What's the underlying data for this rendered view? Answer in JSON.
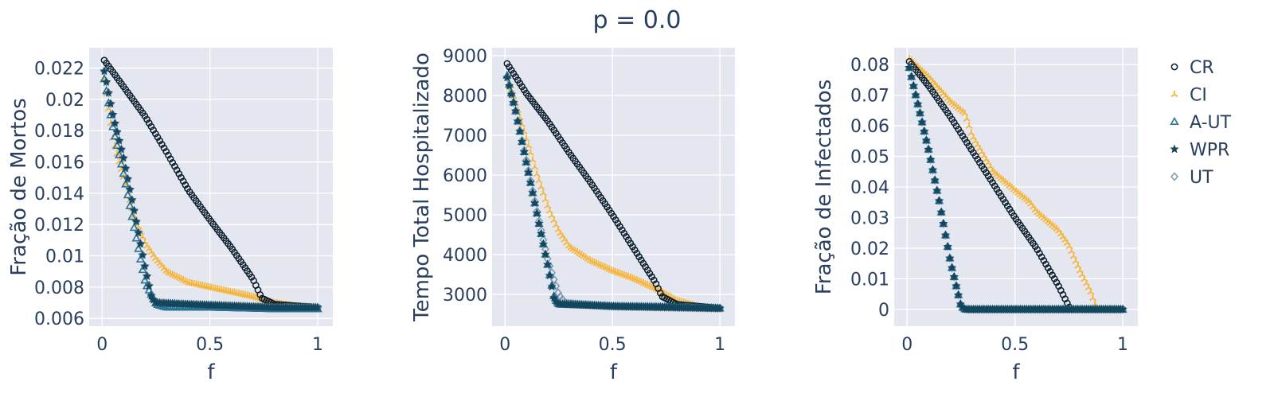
{
  "figure": {
    "title": "p = 0.0"
  },
  "legend": {
    "items": [
      {
        "label": "CR",
        "marker": "circle-open",
        "color": "#0b1e2d"
      },
      {
        "label": "CI",
        "marker": "tri-up",
        "color": "#f6b53b"
      },
      {
        "label": "A-UT",
        "marker": "triangle-open",
        "color": "#2a7393"
      },
      {
        "label": "WPR",
        "marker": "star",
        "color": "#14465e"
      },
      {
        "label": "UT",
        "marker": "diamond-open",
        "color": "#7f99b0"
      }
    ]
  },
  "chart_data": [
    {
      "type": "scatter",
      "xlabel": "f",
      "ylabel": "Fração de Mortos",
      "xlim": [
        -0.06,
        1.07
      ],
      "ylim": [
        0.0055,
        0.0233
      ],
      "xticks": [
        0,
        0.5,
        1
      ],
      "xtick_labels": [
        "0",
        "0.5",
        "1"
      ],
      "yticks": [
        0.006,
        0.008,
        0.01,
        0.012,
        0.014,
        0.016,
        0.018,
        0.02,
        0.022
      ],
      "ytick_labels": [
        "0.006",
        "0.008",
        "0.01",
        "0.012",
        "0.014",
        "0.016",
        "0.018",
        "0.02",
        "0.022"
      ],
      "grid": true,
      "series": [
        {
          "name": "CR",
          "points": [
            [
              0.01,
              0.0225
            ],
            [
              0.1,
              0.0208
            ],
            [
              0.2,
              0.0189
            ],
            [
              0.3,
              0.0166
            ],
            [
              0.4,
              0.0142
            ],
            [
              0.5,
              0.0123
            ],
            [
              0.6,
              0.0105
            ],
            [
              0.7,
              0.0085
            ],
            [
              0.74,
              0.0073
            ],
            [
              0.8,
              0.0069
            ],
            [
              1.0,
              0.0067
            ]
          ]
        },
        {
          "name": "CI",
          "points": [
            [
              0.01,
              0.0213
            ],
            [
              0.05,
              0.0175
            ],
            [
              0.1,
              0.015
            ],
            [
              0.15,
              0.0125
            ],
            [
              0.2,
              0.0108
            ],
            [
              0.25,
              0.0098
            ],
            [
              0.3,
              0.009
            ],
            [
              0.4,
              0.0083
            ],
            [
              0.5,
              0.008
            ],
            [
              0.6,
              0.0077
            ],
            [
              0.7,
              0.0074
            ],
            [
              0.8,
              0.007
            ],
            [
              0.9,
              0.0068
            ],
            [
              1.0,
              0.0067
            ]
          ]
        },
        {
          "name": "A-UT",
          "points": [
            [
              0.01,
              0.0213
            ],
            [
              0.05,
              0.0182
            ],
            [
              0.1,
              0.0152
            ],
            [
              0.15,
              0.0117
            ],
            [
              0.2,
              0.0083
            ],
            [
              0.25,
              0.0069
            ],
            [
              0.3,
              0.0067
            ],
            [
              0.5,
              0.0067
            ],
            [
              0.8,
              0.0066
            ],
            [
              1.0,
              0.0066
            ]
          ]
        },
        {
          "name": "WPR",
          "points": [
            [
              0.01,
              0.0218
            ],
            [
              0.05,
              0.019
            ],
            [
              0.1,
              0.0162
            ],
            [
              0.15,
              0.0128
            ],
            [
              0.2,
              0.0092
            ],
            [
              0.23,
              0.0073
            ],
            [
              0.25,
              0.007
            ],
            [
              0.4,
              0.0069
            ],
            [
              0.6,
              0.0068
            ],
            [
              0.8,
              0.0067
            ],
            [
              1.0,
              0.0067
            ]
          ]
        },
        {
          "name": "UT",
          "points": [
            [
              0.01,
              0.0218
            ],
            [
              0.05,
              0.019
            ],
            [
              0.1,
              0.0162
            ],
            [
              0.15,
              0.0128
            ],
            [
              0.2,
              0.0092
            ],
            [
              0.23,
              0.0074
            ],
            [
              0.25,
              0.007
            ],
            [
              0.4,
              0.0069
            ],
            [
              0.6,
              0.0068
            ],
            [
              0.8,
              0.0067
            ],
            [
              1.0,
              0.0067
            ]
          ]
        }
      ]
    },
    {
      "type": "scatter",
      "xlabel": "f",
      "ylabel": "Tempo Total Hospitalizado",
      "xlim": [
        -0.06,
        1.07
      ],
      "ylim": [
        2200,
        9200
      ],
      "xticks": [
        0,
        0.5,
        1
      ],
      "xtick_labels": [
        "0",
        "0.5",
        "1"
      ],
      "yticks": [
        3000,
        4000,
        5000,
        6000,
        7000,
        8000,
        9000
      ],
      "ytick_labels": [
        "3000",
        "4000",
        "5000",
        "6000",
        "7000",
        "8000",
        "9000"
      ],
      "grid": true,
      "series": [
        {
          "name": "CR",
          "points": [
            [
              0.01,
              8800
            ],
            [
              0.1,
              8050
            ],
            [
              0.2,
              7350
            ],
            [
              0.3,
              6550
            ],
            [
              0.4,
              5800
            ],
            [
              0.5,
              5000
            ],
            [
              0.6,
              4150
            ],
            [
              0.7,
              3300
            ],
            [
              0.73,
              2950
            ],
            [
              0.8,
              2750
            ],
            [
              1.0,
              2650
            ]
          ]
        },
        {
          "name": "CI",
          "points": [
            [
              0.01,
              8500
            ],
            [
              0.05,
              7800
            ],
            [
              0.1,
              6900
            ],
            [
              0.15,
              6000
            ],
            [
              0.2,
              5200
            ],
            [
              0.25,
              4600
            ],
            [
              0.3,
              4200
            ],
            [
              0.4,
              3850
            ],
            [
              0.5,
              3600
            ],
            [
              0.6,
              3400
            ],
            [
              0.7,
              3150
            ],
            [
              0.8,
              2850
            ],
            [
              0.9,
              2700
            ],
            [
              1.0,
              2650
            ]
          ]
        },
        {
          "name": "A-UT",
          "points": [
            [
              0.01,
              8500
            ],
            [
              0.05,
              7600
            ],
            [
              0.1,
              6300
            ],
            [
              0.15,
              5000
            ],
            [
              0.2,
              3700
            ],
            [
              0.23,
              2900
            ],
            [
              0.25,
              2750
            ],
            [
              0.5,
              2700
            ],
            [
              0.8,
              2680
            ],
            [
              1.0,
              2650
            ]
          ]
        },
        {
          "name": "WPR",
          "points": [
            [
              0.01,
              8450
            ],
            [
              0.05,
              7600
            ],
            [
              0.1,
              6300
            ],
            [
              0.15,
              5000
            ],
            [
              0.2,
              3700
            ],
            [
              0.23,
              2850
            ],
            [
              0.25,
              2760
            ],
            [
              0.5,
              2700
            ],
            [
              0.8,
              2670
            ],
            [
              1.0,
              2650
            ]
          ]
        },
        {
          "name": "UT",
          "points": [
            [
              0.01,
              8450
            ],
            [
              0.05,
              7600
            ],
            [
              0.1,
              6350
            ],
            [
              0.15,
              5050
            ],
            [
              0.2,
              3850
            ],
            [
              0.25,
              3000
            ],
            [
              0.28,
              2780
            ],
            [
              0.5,
              2700
            ],
            [
              0.8,
              2670
            ],
            [
              1.0,
              2650
            ]
          ]
        }
      ]
    },
    {
      "type": "scatter",
      "xlabel": "f",
      "ylabel": "Fração de Infectados",
      "xlim": [
        -0.06,
        1.07
      ],
      "ylim": [
        -0.0055,
        0.0855
      ],
      "xticks": [
        0,
        0.5,
        1
      ],
      "xtick_labels": [
        "0",
        "0.5",
        "1"
      ],
      "yticks": [
        0,
        0.01,
        0.02,
        0.03,
        0.04,
        0.05,
        0.06,
        0.07,
        0.08
      ],
      "ytick_labels": [
        "0",
        "0.01",
        "0.02",
        "0.03",
        "0.04",
        "0.05",
        "0.06",
        "0.07",
        "0.08"
      ],
      "grid": true,
      "series": [
        {
          "name": "CR",
          "points": [
            [
              0.01,
              0.081
            ],
            [
              0.1,
              0.073
            ],
            [
              0.2,
              0.063
            ],
            [
              0.3,
              0.052
            ],
            [
              0.4,
              0.041
            ],
            [
              0.5,
              0.03
            ],
            [
              0.6,
              0.02
            ],
            [
              0.7,
              0.008
            ],
            [
              0.75,
              0.001
            ],
            [
              0.76,
              0.0
            ],
            [
              1.0,
              0.0
            ]
          ]
        },
        {
          "name": "CI",
          "points": [
            [
              0.01,
              0.082
            ],
            [
              0.1,
              0.076
            ],
            [
              0.2,
              0.068
            ],
            [
              0.27,
              0.064
            ],
            [
              0.3,
              0.057
            ],
            [
              0.4,
              0.045
            ],
            [
              0.5,
              0.039
            ],
            [
              0.57,
              0.035
            ],
            [
              0.6,
              0.032
            ],
            [
              0.7,
              0.026
            ],
            [
              0.75,
              0.021
            ],
            [
              0.8,
              0.013
            ],
            [
              0.85,
              0.006
            ],
            [
              0.88,
              0.0
            ],
            [
              1.0,
              0.0
            ]
          ]
        },
        {
          "name": "A-UT",
          "points": [
            [
              0.01,
              0.079
            ],
            [
              0.05,
              0.067
            ],
            [
              0.1,
              0.052
            ],
            [
              0.15,
              0.035
            ],
            [
              0.2,
              0.016
            ],
            [
              0.25,
              0.001
            ],
            [
              0.27,
              0.0
            ],
            [
              1.0,
              0.0
            ]
          ]
        },
        {
          "name": "WPR",
          "points": [
            [
              0.01,
              0.079
            ],
            [
              0.05,
              0.067
            ],
            [
              0.1,
              0.052
            ],
            [
              0.15,
              0.035
            ],
            [
              0.2,
              0.016
            ],
            [
              0.25,
              0.001
            ],
            [
              0.27,
              0.0
            ],
            [
              1.0,
              0.0
            ]
          ]
        },
        {
          "name": "UT",
          "points": [
            [
              0.01,
              0.079
            ],
            [
              0.05,
              0.067
            ],
            [
              0.1,
              0.052
            ],
            [
              0.15,
              0.035
            ],
            [
              0.2,
              0.016
            ],
            [
              0.25,
              0.001
            ],
            [
              0.27,
              0.0
            ],
            [
              1.0,
              0.0
            ]
          ]
        }
      ]
    }
  ]
}
